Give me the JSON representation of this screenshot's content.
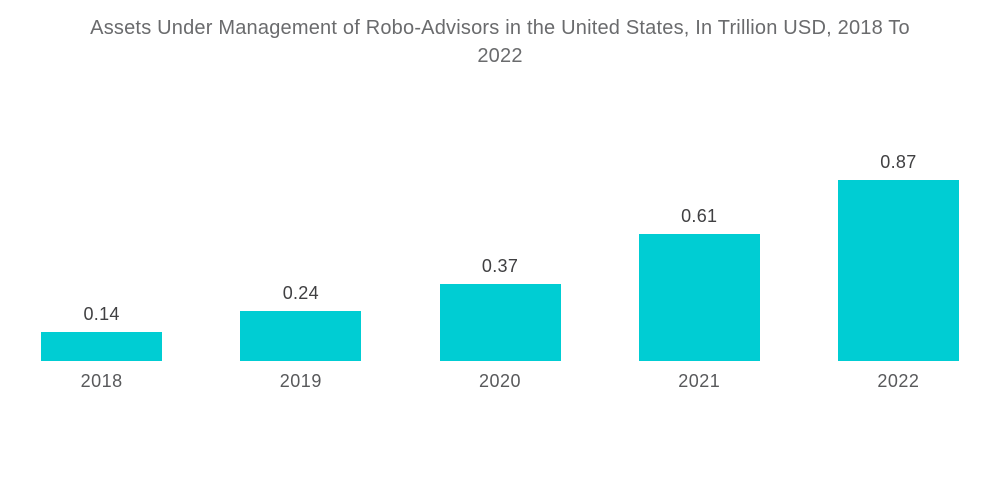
{
  "title": "Assets Under Management of Robo-Advisors in the United States, In Trillion USD, 2018 To 2022",
  "colors": {
    "bar": "#00CDD3",
    "background": "#FFFFFF",
    "title_text": "#6A6B6D",
    "value_label_text": "#404042",
    "category_label_text": "#58595B"
  },
  "chart_data": {
    "type": "bar",
    "title": "Assets Under Management of Robo-Advisors in the United States, In Trillion USD, 2018 To 2022",
    "categories": [
      "2018",
      "2019",
      "2020",
      "2021",
      "2022"
    ],
    "values": [
      0.14,
      0.24,
      0.37,
      0.61,
      0.87
    ],
    "value_labels": [
      "0.14",
      "0.24",
      "0.37",
      "0.61",
      "0.87"
    ],
    "series": [
      {
        "name": "Assets Under Management (Trillion USD)",
        "values": [
          0.14,
          0.24,
          0.37,
          0.61,
          0.87
        ]
      }
    ],
    "xlabel": "",
    "ylabel": "",
    "ylim": [
      0,
      0.95
    ],
    "grid": false,
    "legend_position": "none",
    "data_labels_position": "above-bars",
    "orientation": "vertical"
  }
}
